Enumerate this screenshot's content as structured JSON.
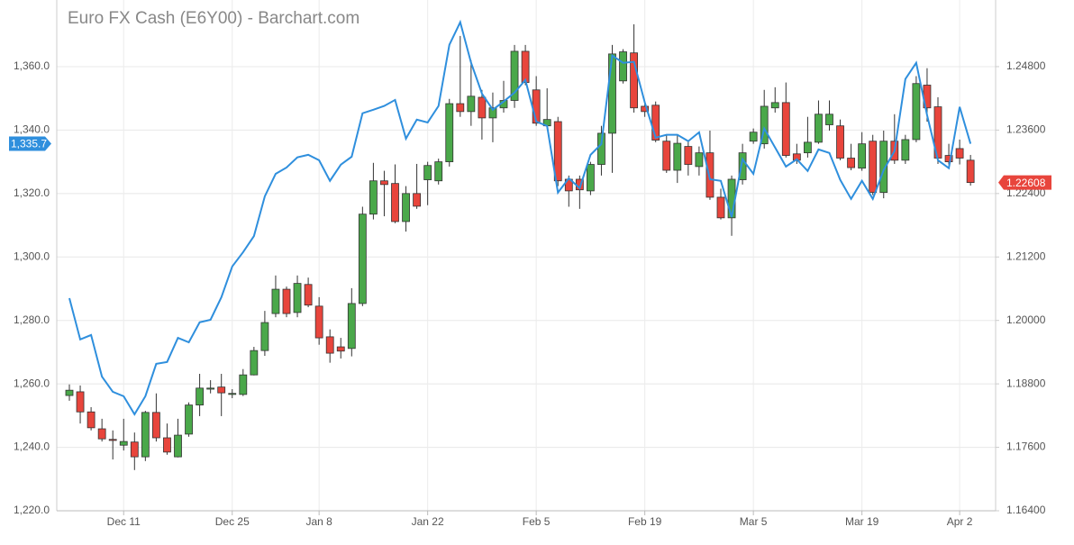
{
  "chart_data": {
    "type": "candlestick",
    "title": "Euro FX Cash (E6Y00) - Barchart.com",
    "categories": [
      null,
      null,
      null,
      null,
      null,
      "Dec 11",
      null,
      null,
      null,
      null,
      null,
      null,
      null,
      null,
      null,
      "Dec 25",
      null,
      null,
      null,
      null,
      null,
      null,
      null,
      "Jan 8",
      null,
      null,
      null,
      null,
      null,
      null,
      null,
      null,
      null,
      "Jan 22",
      null,
      null,
      null,
      null,
      null,
      null,
      null,
      null,
      null,
      "Feb 5",
      null,
      null,
      null,
      null,
      null,
      null,
      null,
      null,
      null,
      "Feb 19",
      null,
      null,
      null,
      null,
      null,
      null,
      null,
      null,
      null,
      "Mar 5",
      null,
      null,
      null,
      null,
      null,
      null,
      null,
      null,
      null,
      "Mar 19",
      null,
      null,
      null,
      null,
      null,
      null,
      null,
      null,
      "Apr 2",
      null
    ],
    "ylim": [
      1220,
      1381
    ],
    "yticks": [
      {
        "value": 1220,
        "label": "1,220.0"
      },
      {
        "value": 1240,
        "label": "1,240.0"
      },
      {
        "value": 1260,
        "label": "1,260.0"
      },
      {
        "value": 1280,
        "label": "1,280.0"
      },
      {
        "value": 1300,
        "label": "1,300.0"
      },
      {
        "value": 1320,
        "label": "1,320.0"
      },
      {
        "value": 1340,
        "label": "1,340.0"
      },
      {
        "value": 1360,
        "label": "1,360.0"
      }
    ],
    "y2lim": [
      1.164,
      1.2606
    ],
    "y2ticks": [
      {
        "value": 1.164,
        "label": "1.16400"
      },
      {
        "value": 1.176,
        "label": "1.17600"
      },
      {
        "value": 1.188,
        "label": "1.18800"
      },
      {
        "value": 1.2,
        "label": "1.20000"
      },
      {
        "value": 1.212,
        "label": "1.21200"
      },
      {
        "value": 1.224,
        "label": "1.22400"
      },
      {
        "value": 1.236,
        "label": "1.23600"
      },
      {
        "value": 1.248,
        "label": "1.24800"
      }
    ],
    "grid": true,
    "series": [
      {
        "type": "candlestick",
        "axis": "y2",
        "up_color": "#4aa84a",
        "down_color": "#e8453c",
        "open": [
          1.1858,
          1.1865,
          1.1827,
          1.1795,
          1.1775,
          1.1764,
          1.177,
          1.1742,
          1.1826,
          1.1778,
          1.1742,
          1.1785,
          1.184,
          1.187,
          1.1874,
          1.186,
          1.186,
          1.1897,
          1.1943,
          1.2013,
          1.2059,
          1.2015,
          1.2068,
          1.2027,
          1.1969,
          1.195,
          1.1947,
          1.2032,
          1.2201,
          1.2264,
          1.2259,
          1.2187,
          1.224,
          1.2266,
          1.2264,
          1.23,
          1.241,
          1.2395,
          1.2422,
          1.2383,
          1.2402,
          1.2416,
          1.2509,
          1.2436,
          1.2368,
          1.2376,
          1.2267,
          1.2267,
          1.2245,
          1.2295,
          1.2354,
          1.2453,
          1.2506,
          1.2405,
          1.2407,
          1.2339,
          1.2284,
          1.2329,
          1.2291,
          1.2317,
          1.2233,
          1.2194,
          1.2266,
          1.2339,
          1.2334,
          1.2402,
          1.2412,
          1.2315,
          1.2317,
          1.2337,
          1.237,
          1.2368,
          1.2307,
          1.2288,
          1.2339,
          1.2242,
          1.2339,
          1.2303,
          1.2342,
          1.2445,
          1.2404,
          1.2312,
          1.2325,
          1.2303
        ],
        "high": [
          1.1879,
          1.1877,
          1.1836,
          1.1814,
          1.1792,
          1.1814,
          1.1788,
          1.1829,
          1.1862,
          1.1805,
          1.1814,
          1.1845,
          1.1899,
          1.1887,
          1.1899,
          1.187,
          1.1908,
          1.195,
          1.2018,
          1.2085,
          1.2064,
          1.2085,
          1.2081,
          1.2044,
          1.1983,
          1.1967,
          1.2061,
          1.2215,
          1.2298,
          1.2283,
          1.2295,
          1.2254,
          1.2296,
          1.23,
          1.2306,
          1.2419,
          1.2538,
          1.2492,
          1.2436,
          1.2431,
          1.2453,
          1.2521,
          1.2521,
          1.2462,
          1.2439,
          1.2385,
          1.2274,
          1.2274,
          1.23,
          1.2368,
          1.2521,
          1.2513,
          1.256,
          1.241,
          1.2414,
          1.2351,
          1.2351,
          1.2339,
          1.2329,
          1.2359,
          1.2249,
          1.2274,
          1.2334,
          1.2363,
          1.2436,
          1.2441,
          1.245,
          1.2334,
          1.2385,
          1.2416,
          1.2416,
          1.238,
          1.2334,
          1.2356,
          1.2351,
          1.2359,
          1.239,
          1.2351,
          1.2462,
          1.2477,
          1.2422,
          1.2334,
          1.2342,
          1.2313
        ],
        "low": [
          1.1848,
          1.1805,
          1.1792,
          1.1771,
          1.1737,
          1.1754,
          1.1717,
          1.1734,
          1.1771,
          1.1746,
          1.1741,
          1.178,
          1.1819,
          1.1862,
          1.1819,
          1.1853,
          1.1857,
          1.1896,
          1.1933,
          1.2006,
          1.2006,
          1.2006,
          1.2025,
          1.1954,
          1.192,
          1.1928,
          1.1932,
          1.2027,
          1.2191,
          1.2197,
          1.2184,
          1.2168,
          1.2211,
          1.2218,
          1.2257,
          1.2291,
          1.2385,
          1.2368,
          1.2342,
          1.2337,
          1.2393,
          1.2402,
          1.2445,
          1.2368,
          1.2363,
          1.2254,
          1.2215,
          1.2211,
          1.2237,
          1.2274,
          1.2279,
          1.2448,
          1.2393,
          1.2385,
          1.2337,
          1.2279,
          1.226,
          1.2274,
          1.2274,
          1.2228,
          1.2191,
          1.216,
          1.2257,
          1.2334,
          1.2325,
          1.2393,
          1.2308,
          1.2296,
          1.2308,
          1.2334,
          1.2359,
          1.2303,
          1.2284,
          1.2283,
          1.2237,
          1.2231,
          1.2296,
          1.2296,
          1.2337,
          1.2376,
          1.2296,
          1.2295,
          1.2295,
          1.2255
        ],
        "close": [
          1.1868,
          1.1827,
          1.1797,
          1.1776,
          1.1773,
          1.1771,
          1.1742,
          1.1826,
          1.1778,
          1.1751,
          1.1783,
          1.184,
          1.1872,
          1.1872,
          1.1863,
          1.1862,
          1.1897,
          1.1943,
          1.1996,
          1.2059,
          1.2013,
          1.207,
          1.2029,
          1.1967,
          1.1938,
          1.1942,
          1.2032,
          1.2201,
          1.2264,
          1.2257,
          1.2187,
          1.224,
          1.2216,
          1.2293,
          1.23,
          1.241,
          1.2395,
          1.2424,
          1.2383,
          1.2402,
          1.2416,
          1.2509,
          1.245,
          1.2373,
          1.238,
          1.2264,
          1.2245,
          1.2247,
          1.2295,
          1.2354,
          1.2504,
          1.2508,
          1.2402,
          1.2395,
          1.2341,
          1.2284,
          1.2335,
          1.2295,
          1.2317,
          1.2233,
          1.2194,
          1.2267,
          1.2317,
          1.2356,
          1.2405,
          1.2412,
          1.2312,
          1.2303,
          1.2337,
          1.239,
          1.239,
          1.2307,
          1.2289,
          1.2334,
          1.2242,
          1.2339,
          1.2303,
          1.2342,
          1.2448,
          1.2402,
          1.2307,
          1.23,
          1.2307,
          1.22608
        ]
      },
      {
        "type": "line",
        "axis": "y",
        "color": "#2f8fdd",
        "values": [
          1287.0,
          1274.0,
          1275.4,
          1262.3,
          1257.5,
          1256.1,
          1250.4,
          1256.1,
          1266.3,
          1266.9,
          1274.5,
          1273.1,
          1279.4,
          1280.2,
          1287.3,
          1297.0,
          1301.5,
          1306.6,
          1319.1,
          1326.2,
          1328.2,
          1331.4,
          1332.2,
          1330.5,
          1324.0,
          1329.1,
          1331.6,
          1345.3,
          1346.4,
          1347.6,
          1349.5,
          1337.3,
          1343.3,
          1342.4,
          1347.6,
          1366.9,
          1374.0,
          1361.2,
          1351.5,
          1346.4,
          1349.0,
          1351.8,
          1355.8,
          1342.7,
          1341.3,
          1320.3,
          1324.8,
          1321.7,
          1332.2,
          1335.6,
          1363.5,
          1361.2,
          1361.5,
          1348.7,
          1337.6,
          1338.5,
          1338.5,
          1336.5,
          1339.3,
          1324.5,
          1324.0,
          1312.6,
          1330.8,
          1326.2,
          1340.5,
          1334.5,
          1328.5,
          1330.8,
          1327.1,
          1333.9,
          1332.8,
          1324.3,
          1318.3,
          1324.0,
          1318.3,
          1327.4,
          1333.4,
          1356.1,
          1361.2,
          1344.7,
          1330.5,
          1328.0,
          1347.3,
          1335.7
        ],
        "value_labels": [
          null,
          null,
          null,
          null,
          null,
          null,
          null,
          null,
          null,
          null,
          null,
          null,
          null,
          null,
          null,
          null,
          null,
          null,
          null,
          null,
          null,
          null,
          null,
          null,
          null,
          null,
          null,
          null,
          null,
          null,
          null,
          null,
          null,
          null,
          null,
          null,
          null,
          null,
          null,
          null,
          null,
          null,
          null,
          null,
          null,
          null,
          null,
          null,
          null,
          null,
          null,
          null,
          null,
          null,
          null,
          null,
          null,
          null,
          null,
          null,
          null,
          null,
          null,
          null,
          null,
          null,
          null,
          null,
          null,
          null,
          null,
          null,
          null,
          null,
          null,
          null,
          null,
          null,
          null,
          null,
          null,
          null,
          null,
          "1,335.7"
        ]
      }
    ]
  }
}
